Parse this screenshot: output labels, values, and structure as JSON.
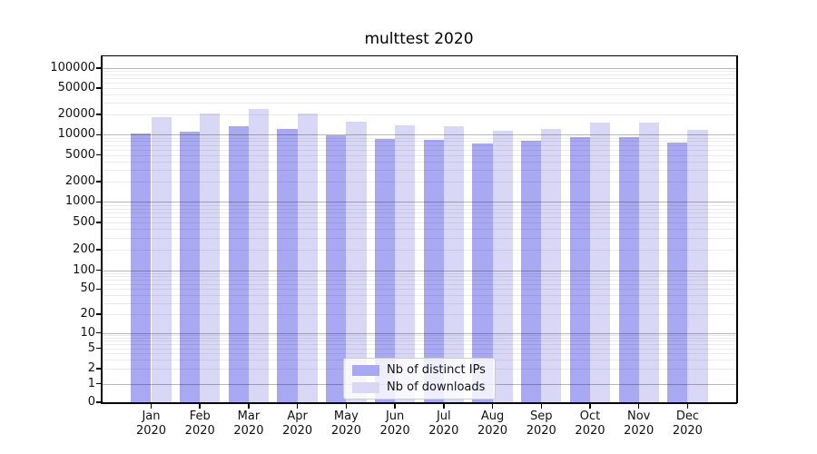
{
  "title": "multtest 2020",
  "y_axis": {
    "ticks": [
      100000,
      50000,
      20000,
      10000,
      5000,
      2000,
      1000,
      500,
      200,
      100,
      50,
      20,
      10,
      5,
      2,
      1,
      0
    ]
  },
  "grid": {
    "major_color": "rgba(0,0,0,0.28)",
    "minor_color": "rgba(0,0,0,0.08)"
  },
  "chart_data": {
    "type": "bar",
    "title": "multtest 2020",
    "yscale": "symlog",
    "ylim": [
      0,
      150000
    ],
    "grid": true,
    "legend_position": "lower center",
    "xlabel": "",
    "ylabel": "",
    "categories": [
      "Jan 2020",
      "Feb 2020",
      "Mar 2020",
      "Apr 2020",
      "May 2020",
      "Jun 2020",
      "Jul 2020",
      "Aug 2020",
      "Sep 2020",
      "Oct 2020",
      "Nov 2020",
      "Dec 2020"
    ],
    "series": [
      {
        "name": "Nb of distinct IPs",
        "color": "#a9a9f3",
        "values": [
          10500,
          11000,
          13200,
          12000,
          9800,
          8700,
          8500,
          7500,
          8100,
          9200,
          9200,
          7700
        ]
      },
      {
        "name": "Nb of downloads",
        "color": "#d8d8f6",
        "values": [
          18300,
          21000,
          24000,
          21000,
          15600,
          13700,
          13500,
          11400,
          12100,
          15100,
          15000,
          11900
        ]
      }
    ]
  }
}
